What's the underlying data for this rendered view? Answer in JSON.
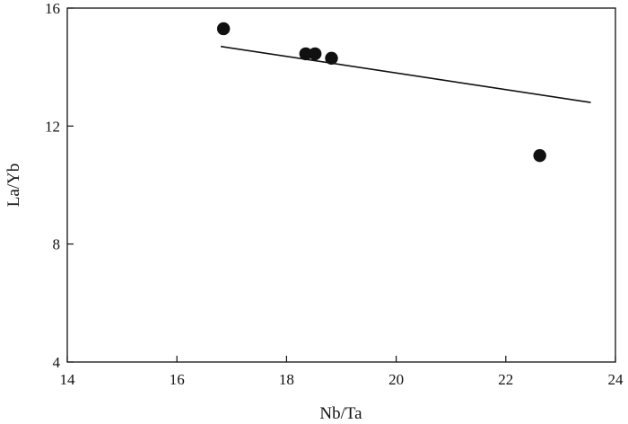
{
  "chart_data": {
    "type": "scatter",
    "title": "",
    "xlabel": "Nb/Ta",
    "ylabel": "La/Yb",
    "xlim": [
      14,
      24
    ],
    "ylim": [
      4,
      16
    ],
    "x_ticks": [
      14,
      16,
      18,
      20,
      22,
      24
    ],
    "y_ticks": [
      4,
      8,
      12,
      16
    ],
    "x_tick_labels": [
      "14",
      "16",
      "18",
      "20",
      "22",
      "24"
    ],
    "y_tick_labels": [
      "4",
      "8",
      "12",
      "16"
    ],
    "grid": false,
    "legend": "none",
    "series": [
      {
        "type": "scatter",
        "marker": "filled-circle",
        "color": "#111111",
        "points": [
          {
            "x": 16.85,
            "y": 15.3
          },
          {
            "x": 18.35,
            "y": 14.45
          },
          {
            "x": 18.52,
            "y": 14.45
          },
          {
            "x": 18.82,
            "y": 14.3
          },
          {
            "x": 22.62,
            "y": 11.0
          }
        ]
      },
      {
        "type": "line",
        "color": "#111111",
        "points": [
          {
            "x": 16.8,
            "y": 14.7
          },
          {
            "x": 23.55,
            "y": 12.8
          }
        ]
      }
    ]
  }
}
